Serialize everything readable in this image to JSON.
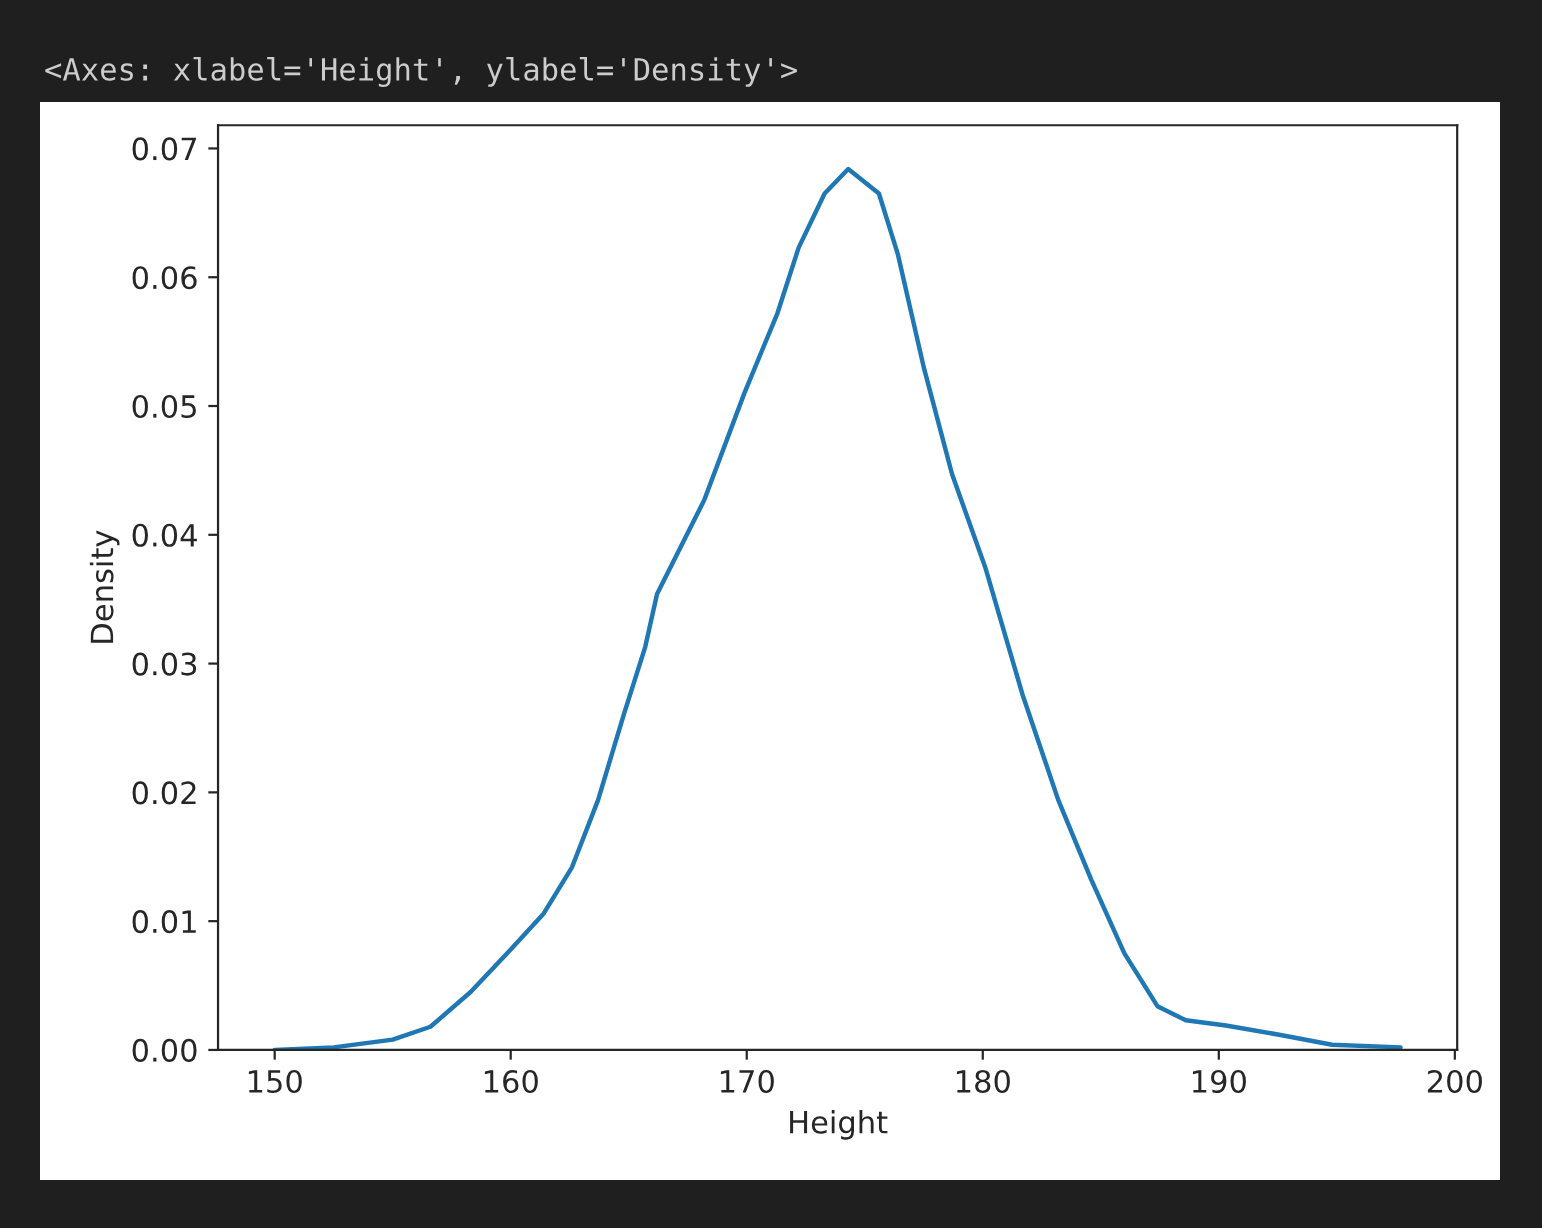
{
  "chart_data": {
    "type": "line",
    "xlabel": "Height",
    "ylabel": "Density",
    "annotations": [
      "<Axes: xlabel='Height', ylabel='Density'>"
    ],
    "x": [
      150,
      152.5,
      155,
      156.6,
      158.3,
      160,
      161.4,
      162.6,
      163.7,
      164.8,
      165.7,
      166.2,
      168.2,
      169.9,
      171.3,
      172.2,
      173.3,
      174.3,
      175.6,
      176.4,
      177.5,
      178.7,
      180.1,
      181.7,
      183.2,
      184.6,
      186.0,
      187.4,
      188.6,
      190.3,
      192.5,
      194.8,
      197.7
    ],
    "series": [
      {
        "color": "#1f77b4",
        "values": [
          0.0,
          0.0002,
          0.0008,
          0.0018,
          0.0045,
          0.0078,
          0.0106,
          0.0142,
          0.0194,
          0.0261,
          0.0313,
          0.0354,
          0.0427,
          0.051,
          0.0572,
          0.0623,
          0.0665,
          0.0684,
          0.0665,
          0.0618,
          0.053,
          0.0447,
          0.0375,
          0.0275,
          0.0194,
          0.0132,
          0.0075,
          0.0034,
          0.0023,
          0.0019,
          0.0012,
          0.0004,
          0.0002
        ]
      }
    ],
    "xlim": [
      147.6,
      200.1
    ],
    "xticks": [
      150,
      160,
      170,
      180,
      190,
      200
    ],
    "ylim": [
      0,
      0.0718
    ],
    "yticks": [
      {
        "value": 0,
        "label": "0.00"
      },
      {
        "value": 0.01,
        "label": "0.01"
      },
      {
        "value": 0.02,
        "label": "0.02"
      },
      {
        "value": 0.03,
        "label": "0.03"
      },
      {
        "value": 0.04,
        "label": "0.04"
      },
      {
        "value": 0.05,
        "label": "0.05"
      },
      {
        "value": 0.06,
        "label": "0.06"
      },
      {
        "value": 0.07,
        "label": "0.07"
      }
    ],
    "grid": false
  }
}
